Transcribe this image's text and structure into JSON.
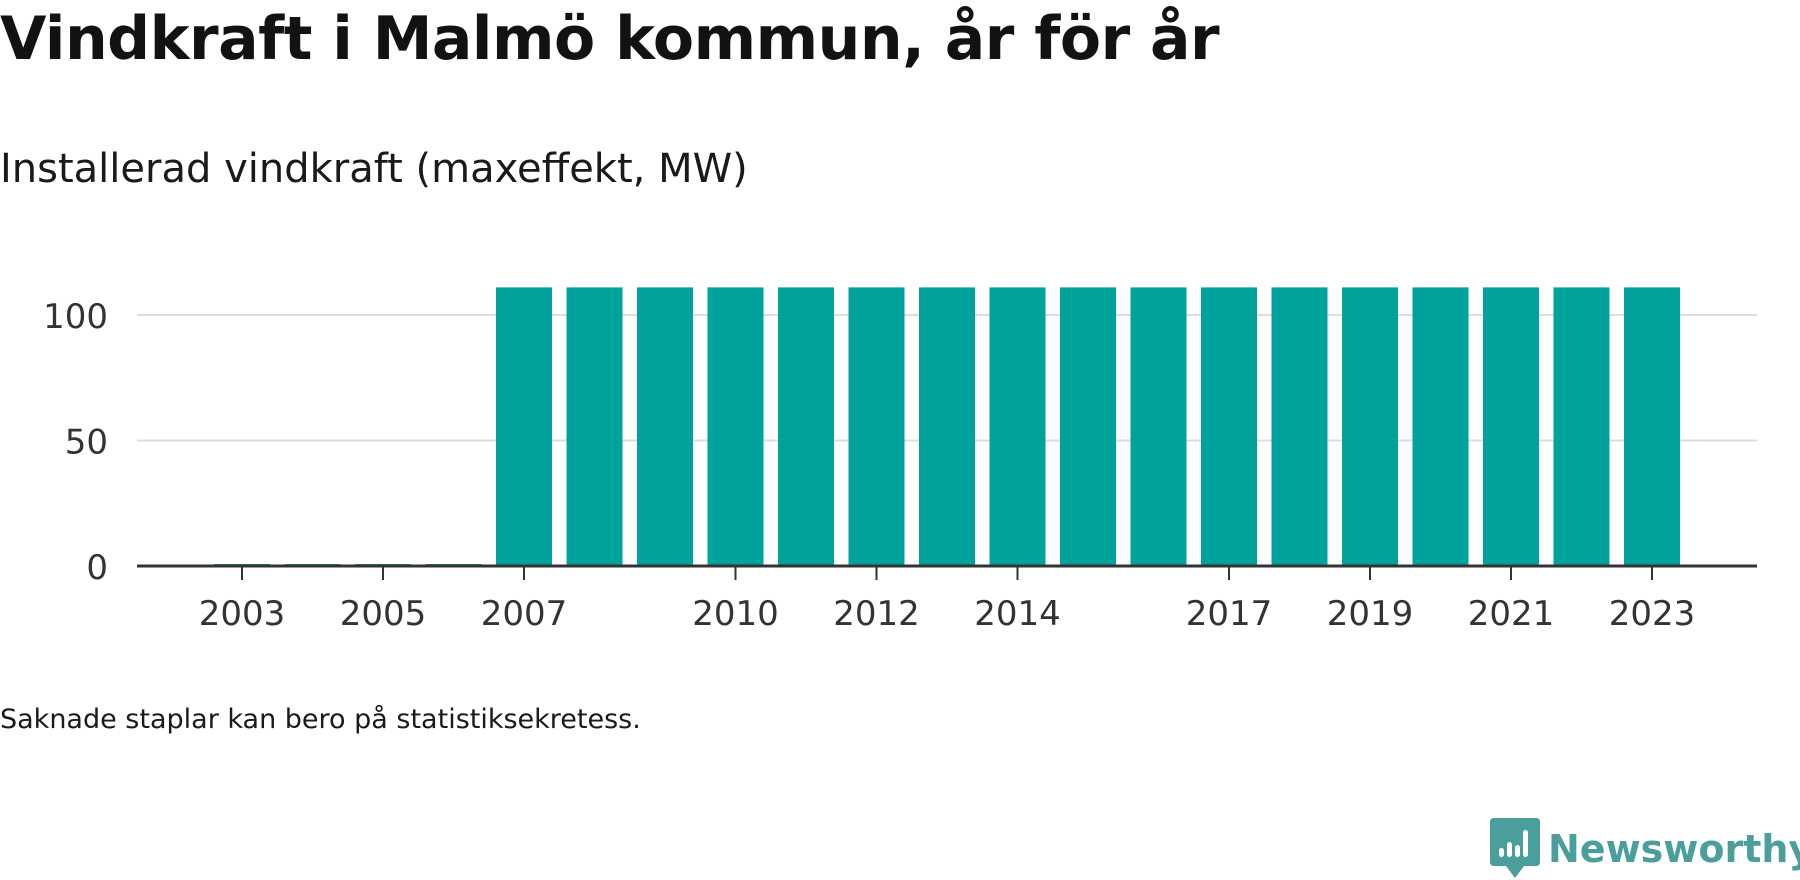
{
  "title": "Vindkraft i Malmö kommun, år för år",
  "subtitle": "Installerad vindkraft (maxeffekt, MW)",
  "note": "Saknade staplar kan bero på statistiksekretess.",
  "brand": {
    "name": "Newsworthy",
    "logo_icon": "newsworthy-chat-bars-icon"
  },
  "colors": {
    "bar": "#00a39b",
    "grid": "#dddddd",
    "axis": "#333333",
    "text": "#333333",
    "brand": "#4a9e9b"
  },
  "chart_data": {
    "type": "bar",
    "categories": [
      "2002",
      "2003",
      "2004",
      "2005",
      "2006",
      "2007",
      "2008",
      "2009",
      "2010",
      "2011",
      "2012",
      "2013",
      "2014",
      "2015",
      "2016",
      "2017",
      "2018",
      "2019",
      "2020",
      "2021",
      "2022",
      "2023",
      "2024"
    ],
    "values": [
      null,
      0.5,
      0.5,
      0.5,
      0.5,
      111,
      111,
      111,
      111,
      111,
      111,
      111,
      111,
      111,
      111,
      111,
      111,
      111,
      111,
      111,
      111,
      111,
      null
    ],
    "x_tick_labels": [
      "2003",
      "2005",
      "2007",
      "2010",
      "2012",
      "2014",
      "2017",
      "2019",
      "2021",
      "2023"
    ],
    "y_ticks": [
      0,
      50,
      100
    ],
    "ylim": [
      0,
      120
    ],
    "grid": true,
    "legend": "none"
  }
}
